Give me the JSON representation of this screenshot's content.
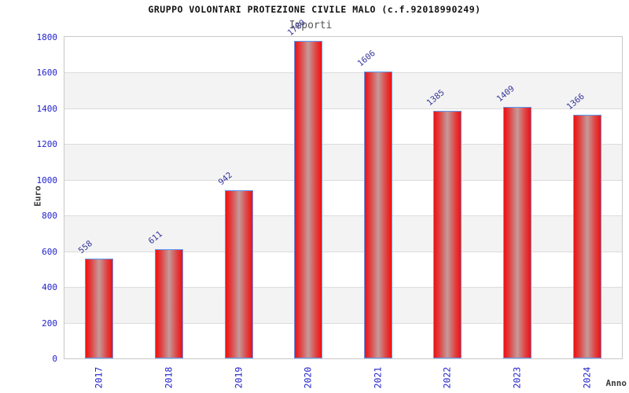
{
  "chart_data": {
    "type": "bar",
    "title": "GRUPPO VOLONTARI PROTEZIONE CIVILE MALO (c.f.92018990249)",
    "subtitle": "Importi",
    "xlabel": "Anno",
    "ylabel": "Euro",
    "categories": [
      "2017",
      "2018",
      "2019",
      "2020",
      "2021",
      "2022",
      "2023",
      "2024"
    ],
    "values": [
      558,
      611,
      942,
      1780,
      1606,
      1385,
      1409,
      1366
    ],
    "ylim": [
      0,
      1800
    ],
    "ytick_step": 200,
    "yticks": [
      0,
      200,
      400,
      600,
      800,
      1000,
      1200,
      1400,
      1600,
      1800
    ],
    "legend": "none",
    "grid": "horizontal gridlines every 200 with alternating light-gray bands",
    "bar_value_labels_rotated": true,
    "colors": {
      "bar_edge_red": "#ef1111",
      "bar_mid_red": "#e23b3b",
      "bar_center_gray": "#c59a9a",
      "bar_border_blue": "#5b9bf5",
      "tick_blue": "#2222cc",
      "value_navy": "#333399",
      "band_gray": "#f3f3f3",
      "gridline_gray": "#dcdcdc",
      "plot_border_gray": "#c8c8c8",
      "title_color": "#111111",
      "subtitle_color": "#555555",
      "axis_label_color": "#3a3a3a"
    }
  }
}
